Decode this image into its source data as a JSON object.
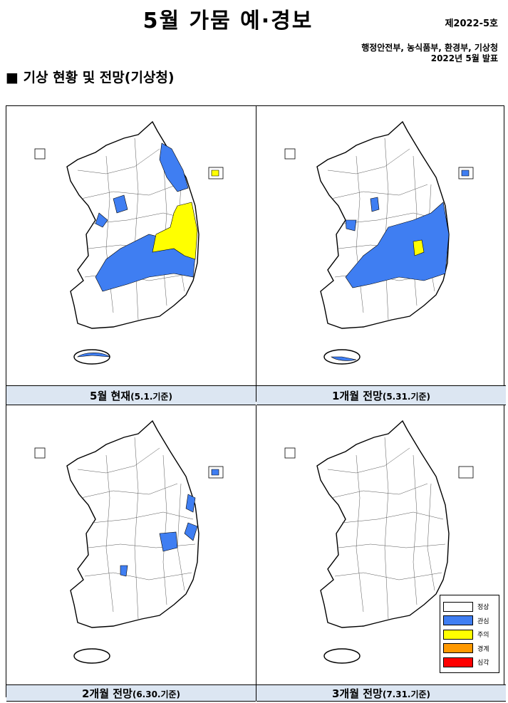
{
  "header": {
    "title": "5월 가뭄 예·경보",
    "doc_number": "제2022-5호",
    "agencies": "행정안전부, 농식품부, 환경부, 기상청",
    "date": "2022년 5월 발표"
  },
  "section": "■ 기상 현황 및 전망(기상청)",
  "maps": [
    {
      "caption": "5월 현재",
      "basis": "(5.1.기준)"
    },
    {
      "caption": "1개월 전망",
      "basis": "(5.31.기준)"
    },
    {
      "caption": "2개월 전망",
      "basis": "(6.30.기준)"
    },
    {
      "caption": "3개월 전망",
      "basis": "(7.31.기준)"
    }
  ],
  "legend": [
    {
      "label": "정상",
      "color": "#ffffff"
    },
    {
      "label": "관심",
      "color": "#3f7ef2"
    },
    {
      "label": "주의",
      "color": "#ffff00"
    },
    {
      "label": "경계",
      "color": "#ff9900"
    },
    {
      "label": "심각",
      "color": "#ff0000"
    }
  ]
}
